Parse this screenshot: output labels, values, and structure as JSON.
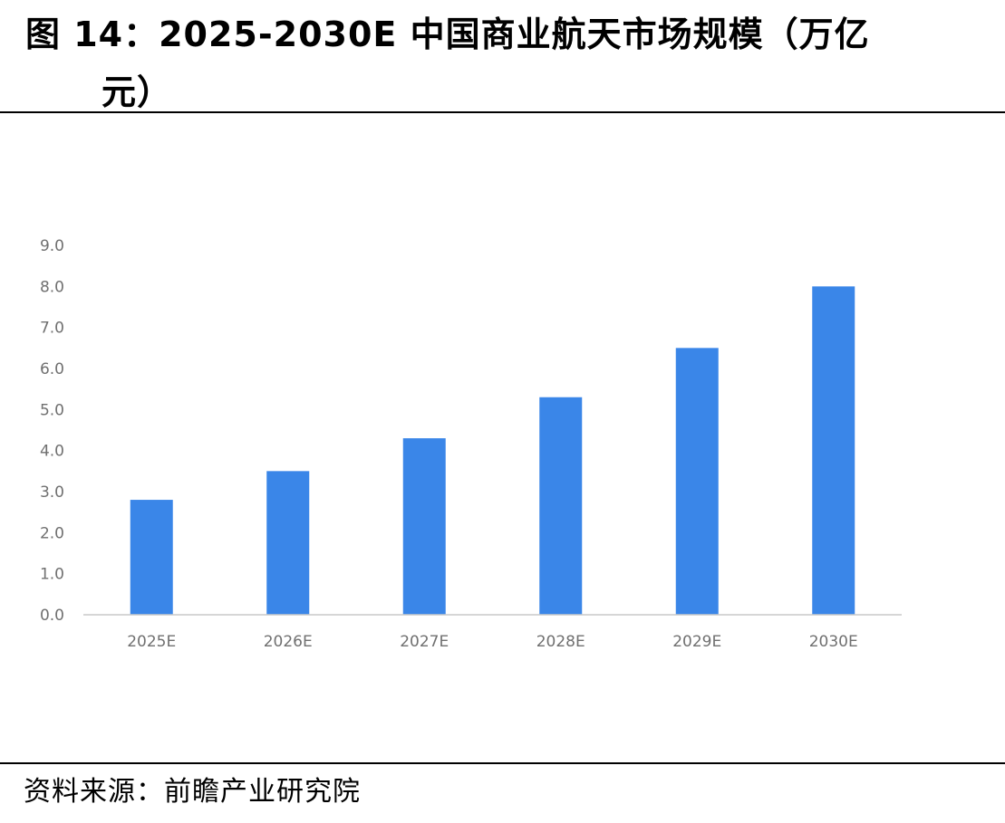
{
  "figure": {
    "title_line1": "图 14：2025-2030E 中国商业航天市场规模（万亿",
    "title_line2": "元）",
    "source": "资料来源：前瞻产业研究院"
  },
  "colors": {
    "bar": "#3a86e8",
    "tick_text": "#707070",
    "axis": "#c8c8c8"
  },
  "chart_data": {
    "type": "bar",
    "title": "",
    "xlabel": "",
    "ylabel": "",
    "categories": [
      "2025E",
      "2026E",
      "2027E",
      "2028E",
      "2029E",
      "2030E"
    ],
    "values": [
      2.8,
      3.5,
      4.3,
      5.3,
      6.5,
      8.0
    ],
    "ylim": [
      0,
      9
    ],
    "yticks": [
      "0.0",
      "1.0",
      "2.0",
      "3.0",
      "4.0",
      "5.0",
      "6.0",
      "7.0",
      "8.0",
      "9.0"
    ],
    "grid": false,
    "legend": "none"
  }
}
